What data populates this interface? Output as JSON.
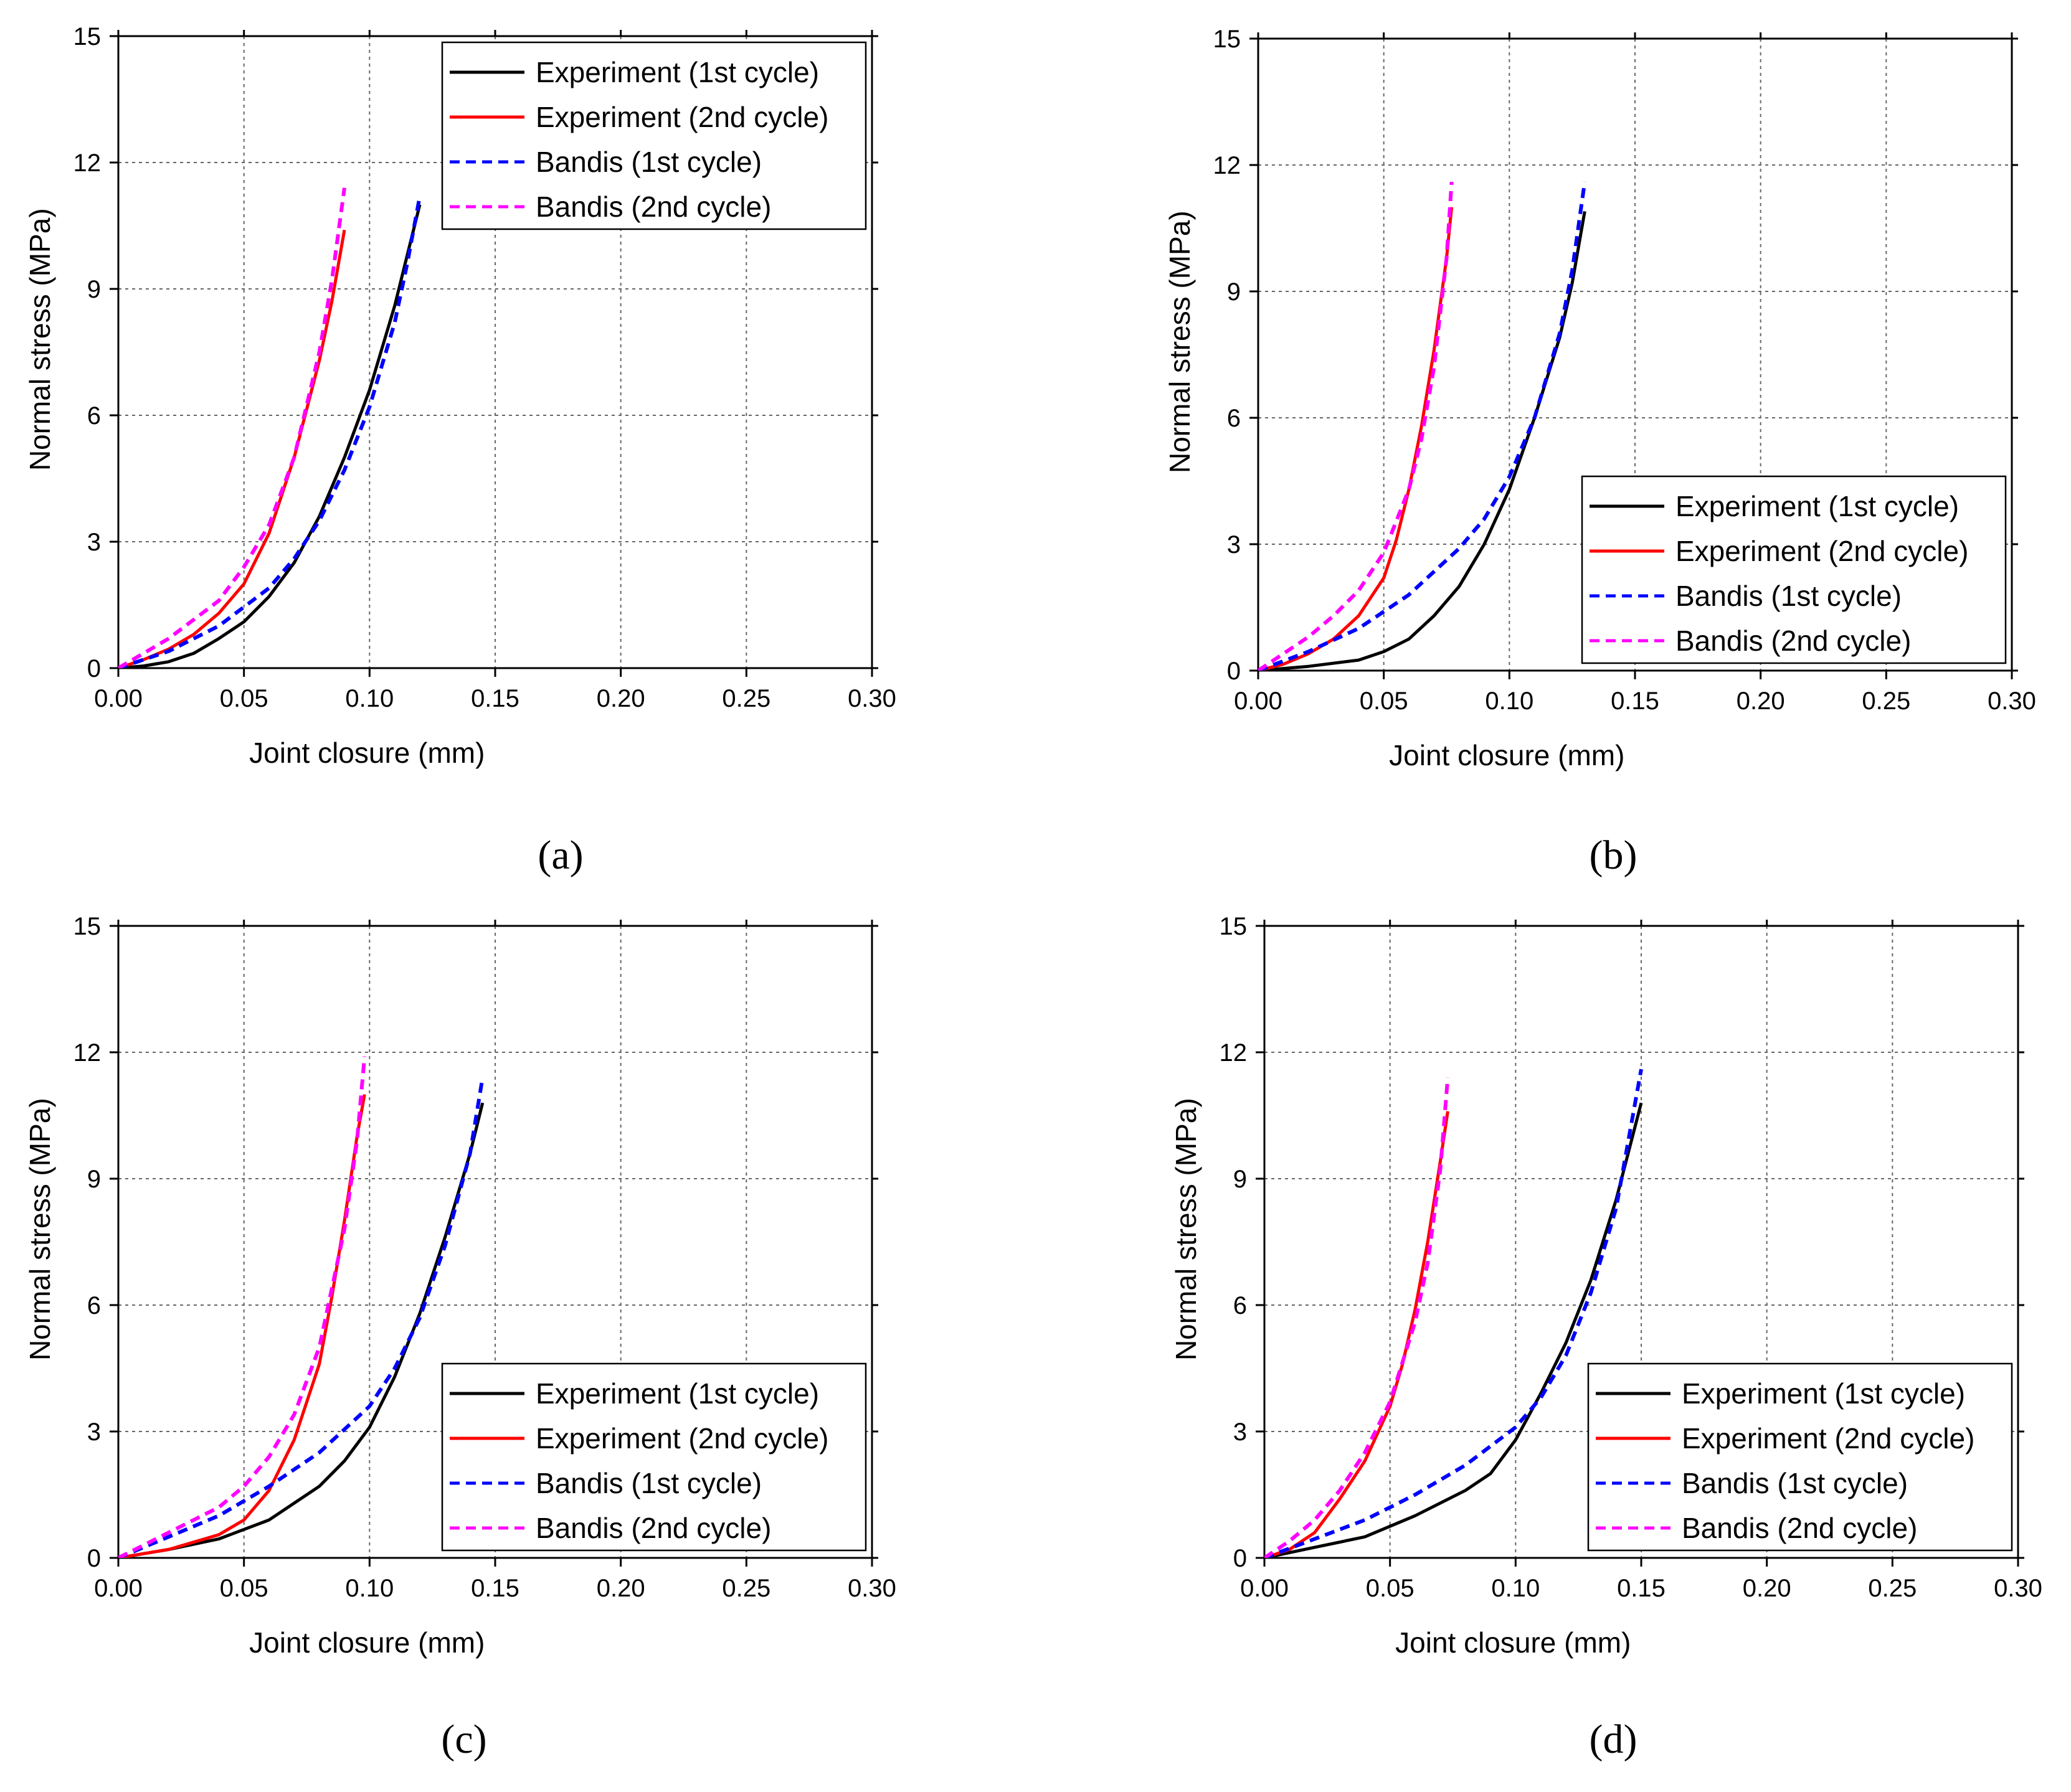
{
  "figure": {
    "captions": [
      "(a)",
      "(b)",
      "(c)",
      "(d)"
    ]
  },
  "colors": {
    "exp1": "#000000",
    "exp2": "#ff0000",
    "bandis1": "#0000ff",
    "bandis2": "#ff00ff",
    "grid": "#666666"
  },
  "chart_data": [
    {
      "type": "line",
      "panel": "a",
      "xlabel": "Joint closure (mm)",
      "ylabel": "Normal stress (MPa)",
      "xlim": [
        0,
        0.3
      ],
      "ylim": [
        0,
        15
      ],
      "xticks": [
        "0.00",
        "0.05",
        "0.10",
        "0.15",
        "0.20",
        "0.25",
        "0.30"
      ],
      "yticks": [
        "0",
        "3",
        "6",
        "9",
        "12",
        "15"
      ],
      "legend_position": "top-right",
      "series": [
        {
          "name": "Experiment (1st cycle)",
          "style": "solid",
          "color": "#000000",
          "x": [
            0,
            0.01,
            0.02,
            0.03,
            0.04,
            0.05,
            0.06,
            0.07,
            0.08,
            0.09,
            0.1,
            0.11,
            0.115,
            0.12
          ],
          "y": [
            0,
            0.05,
            0.15,
            0.35,
            0.7,
            1.1,
            1.7,
            2.5,
            3.6,
            5.0,
            6.6,
            8.6,
            9.8,
            11.0
          ]
        },
        {
          "name": "Experiment (2nd cycle)",
          "style": "solid",
          "color": "#ff0000",
          "x": [
            0,
            0.01,
            0.02,
            0.03,
            0.04,
            0.05,
            0.06,
            0.07,
            0.08,
            0.085,
            0.09
          ],
          "y": [
            0,
            0.2,
            0.45,
            0.8,
            1.3,
            2.0,
            3.2,
            5.0,
            7.3,
            8.7,
            10.4
          ]
        },
        {
          "name": "Bandis (1st cycle)",
          "style": "dashed",
          "color": "#0000ff",
          "x": [
            0,
            0.02,
            0.04,
            0.06,
            0.07,
            0.08,
            0.09,
            0.1,
            0.11,
            0.115,
            0.12
          ],
          "y": [
            0,
            0.4,
            1.0,
            1.9,
            2.6,
            3.5,
            4.7,
            6.2,
            8.2,
            9.6,
            11.2
          ]
        },
        {
          "name": "Bandis (2nd cycle)",
          "style": "dashed",
          "color": "#ff00ff",
          "x": [
            0,
            0.02,
            0.04,
            0.05,
            0.06,
            0.07,
            0.08,
            0.085,
            0.09
          ],
          "y": [
            0,
            0.7,
            1.6,
            2.4,
            3.4,
            5.0,
            7.5,
            9.2,
            11.4
          ]
        }
      ]
    },
    {
      "type": "line",
      "panel": "b",
      "xlabel": "Joint closure (mm)",
      "ylabel": "Normal stress (MPa)",
      "xlim": [
        0,
        0.3
      ],
      "ylim": [
        0,
        15
      ],
      "xticks": [
        "0.00",
        "0.05",
        "0.10",
        "0.15",
        "0.20",
        "0.25",
        "0.30"
      ],
      "yticks": [
        "0",
        "3",
        "6",
        "9",
        "12",
        "15"
      ],
      "legend_position": "bottom-right",
      "series": [
        {
          "name": "Experiment (1st cycle)",
          "style": "solid",
          "color": "#000000",
          "x": [
            0,
            0.02,
            0.04,
            0.05,
            0.06,
            0.07,
            0.08,
            0.09,
            0.1,
            0.11,
            0.12,
            0.125,
            0.13
          ],
          "y": [
            0,
            0.1,
            0.25,
            0.45,
            0.75,
            1.3,
            2.0,
            3.0,
            4.3,
            6.0,
            7.9,
            9.2,
            10.9
          ]
        },
        {
          "name": "Experiment (2nd cycle)",
          "style": "solid",
          "color": "#ff0000",
          "x": [
            0,
            0.01,
            0.02,
            0.03,
            0.04,
            0.05,
            0.055,
            0.06,
            0.065,
            0.07,
            0.075,
            0.077
          ],
          "y": [
            0,
            0.15,
            0.4,
            0.75,
            1.3,
            2.2,
            3.1,
            4.3,
            5.8,
            7.6,
            9.8,
            11.0
          ]
        },
        {
          "name": "Bandis (1st cycle)",
          "style": "dashed",
          "color": "#0000ff",
          "x": [
            0,
            0.02,
            0.04,
            0.06,
            0.08,
            0.09,
            0.1,
            0.11,
            0.12,
            0.125,
            0.13
          ],
          "y": [
            0,
            0.45,
            1.0,
            1.8,
            2.9,
            3.6,
            4.6,
            6.0,
            8.0,
            9.5,
            11.6
          ]
        },
        {
          "name": "Bandis (2nd cycle)",
          "style": "dashed",
          "color": "#ff00ff",
          "x": [
            0,
            0.02,
            0.03,
            0.04,
            0.05,
            0.06,
            0.065,
            0.07,
            0.075,
            0.077
          ],
          "y": [
            0,
            0.8,
            1.3,
            1.9,
            2.8,
            4.3,
            5.5,
            7.2,
            9.8,
            11.6
          ]
        }
      ]
    },
    {
      "type": "line",
      "panel": "c",
      "xlabel": "Joint closure (mm)",
      "ylabel": "Normal stress (MPa)",
      "xlim": [
        0,
        0.3
      ],
      "ylim": [
        0,
        15
      ],
      "xticks": [
        "0.00",
        "0.05",
        "0.10",
        "0.15",
        "0.20",
        "0.25",
        "0.30"
      ],
      "yticks": [
        "0",
        "3",
        "6",
        "9",
        "12",
        "15"
      ],
      "legend_position": "bottom-right",
      "series": [
        {
          "name": "Experiment (1st cycle)",
          "style": "solid",
          "color": "#000000",
          "x": [
            0,
            0.02,
            0.04,
            0.06,
            0.08,
            0.09,
            0.1,
            0.11,
            0.12,
            0.13,
            0.14,
            0.145
          ],
          "y": [
            0,
            0.2,
            0.45,
            0.9,
            1.7,
            2.3,
            3.1,
            4.3,
            5.8,
            7.6,
            9.6,
            10.8
          ]
        },
        {
          "name": "Experiment (2nd cycle)",
          "style": "solid",
          "color": "#ff0000",
          "x": [
            0,
            0.02,
            0.04,
            0.05,
            0.06,
            0.07,
            0.08,
            0.085,
            0.09,
            0.095,
            0.098
          ],
          "y": [
            0,
            0.2,
            0.55,
            0.9,
            1.6,
            2.8,
            4.6,
            6.2,
            8.0,
            10.0,
            11.0
          ]
        },
        {
          "name": "Bandis (1st cycle)",
          "style": "dashed",
          "color": "#0000ff",
          "x": [
            0,
            0.02,
            0.04,
            0.06,
            0.08,
            0.1,
            0.11,
            0.12,
            0.13,
            0.14,
            0.145
          ],
          "y": [
            0,
            0.5,
            1.0,
            1.7,
            2.5,
            3.6,
            4.5,
            5.7,
            7.4,
            9.6,
            11.4
          ]
        },
        {
          "name": "Bandis (2nd cycle)",
          "style": "dashed",
          "color": "#ff00ff",
          "x": [
            0,
            0.02,
            0.04,
            0.05,
            0.06,
            0.07,
            0.08,
            0.09,
            0.095,
            0.098
          ],
          "y": [
            0,
            0.6,
            1.2,
            1.7,
            2.4,
            3.4,
            5.0,
            7.8,
            9.9,
            11.9
          ]
        }
      ]
    },
    {
      "type": "line",
      "panel": "d",
      "xlabel": "Joint closure (mm)",
      "ylabel": "Normal stress (MPa)",
      "xlim": [
        0,
        0.3
      ],
      "ylim": [
        0,
        15
      ],
      "xticks": [
        "0.00",
        "0.05",
        "0.10",
        "0.15",
        "0.20",
        "0.25",
        "0.30"
      ],
      "yticks": [
        "0",
        "3",
        "6",
        "9",
        "12",
        "15"
      ],
      "legend_position": "bottom-right",
      "series": [
        {
          "name": "Experiment (1st cycle)",
          "style": "solid",
          "color": "#000000",
          "x": [
            0,
            0.02,
            0.04,
            0.06,
            0.08,
            0.09,
            0.1,
            0.11,
            0.12,
            0.13,
            0.14,
            0.15
          ],
          "y": [
            0,
            0.25,
            0.5,
            1.0,
            1.6,
            2.0,
            2.8,
            3.9,
            5.1,
            6.6,
            8.5,
            10.8
          ]
        },
        {
          "name": "Experiment (2nd cycle)",
          "style": "solid",
          "color": "#ff0000",
          "x": [
            0,
            0.01,
            0.02,
            0.03,
            0.04,
            0.05,
            0.055,
            0.06,
            0.065,
            0.07,
            0.073
          ],
          "y": [
            0,
            0.2,
            0.6,
            1.4,
            2.3,
            3.6,
            4.6,
            5.9,
            7.5,
            9.4,
            10.6
          ]
        },
        {
          "name": "Bandis (1st cycle)",
          "style": "dashed",
          "color": "#0000ff",
          "x": [
            0,
            0.02,
            0.04,
            0.06,
            0.08,
            0.1,
            0.11,
            0.12,
            0.13,
            0.14,
            0.15
          ],
          "y": [
            0,
            0.45,
            0.9,
            1.5,
            2.2,
            3.1,
            3.8,
            4.8,
            6.3,
            8.3,
            11.6
          ]
        },
        {
          "name": "Bandis (2nd cycle)",
          "style": "dashed",
          "color": "#ff00ff",
          "x": [
            0,
            0.01,
            0.02,
            0.03,
            0.04,
            0.05,
            0.06,
            0.065,
            0.07,
            0.073
          ],
          "y": [
            0,
            0.4,
            0.9,
            1.6,
            2.5,
            3.7,
            5.6,
            7.0,
            9.2,
            11.4
          ]
        }
      ]
    }
  ]
}
